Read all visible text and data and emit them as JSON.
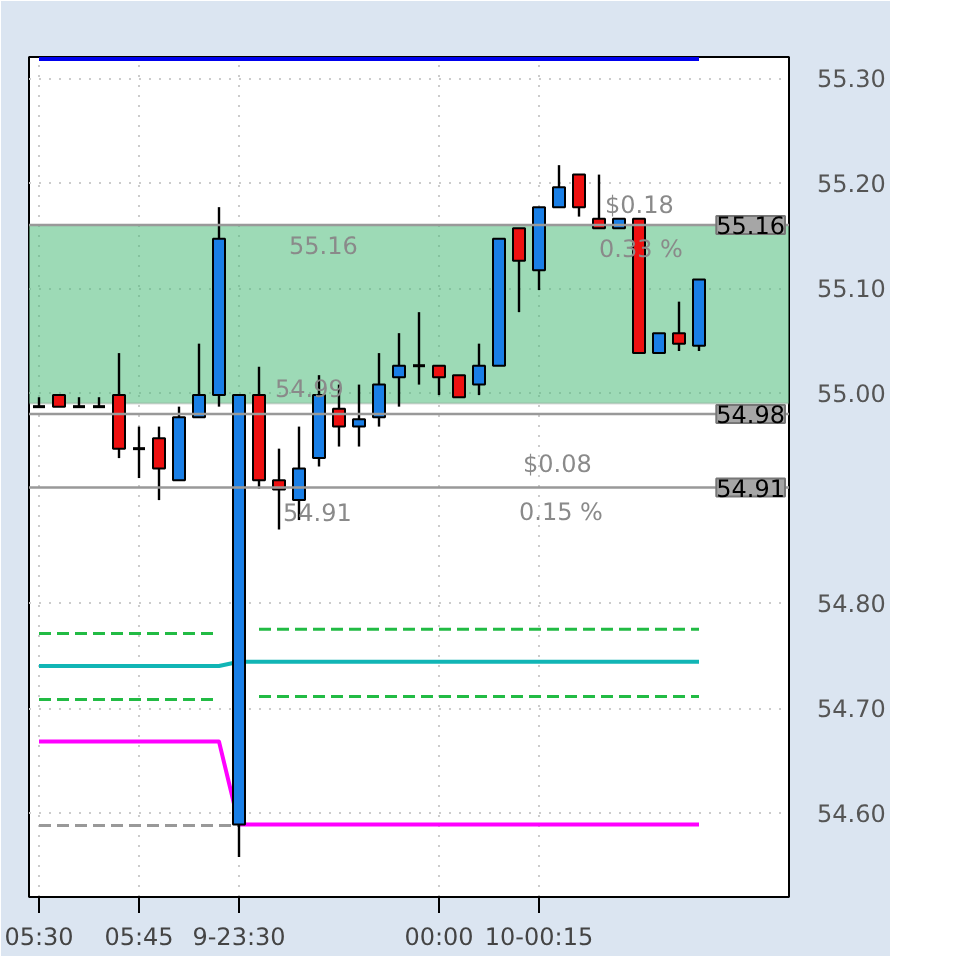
{
  "chart_data": {
    "type": "candlestick",
    "categories": [
      "05:30",
      null,
      null,
      null,
      null,
      "05:45",
      null,
      null,
      null,
      null,
      "9-23:30",
      null,
      null,
      null,
      null,
      null,
      null,
      null,
      null,
      null,
      "00:00",
      null,
      null,
      null,
      null,
      "10-00:15",
      null,
      null,
      null,
      null,
      null,
      null,
      null,
      null
    ],
    "ohlc": [
      [
        54.987,
        54.996,
        54.987,
        54.987
      ],
      [
        54.998,
        54.998,
        54.987,
        54.987
      ],
      [
        54.987,
        54.996,
        54.987,
        54.987
      ],
      [
        54.987,
        54.996,
        54.987,
        54.987
      ],
      [
        54.998,
        55.038,
        54.938,
        54.947
      ],
      [
        54.947,
        54.968,
        54.919,
        54.947
      ],
      [
        54.957,
        54.968,
        54.898,
        54.928
      ],
      [
        54.917,
        54.987,
        54.917,
        54.977
      ],
      [
        54.977,
        55.047,
        54.977,
        54.998
      ],
      [
        54.998,
        55.177,
        54.987,
        55.147
      ],
      [
        54.589,
        54.998,
        54.558,
        54.998
      ],
      [
        54.998,
        55.025,
        54.909,
        54.917
      ],
      [
        54.917,
        54.947,
        54.87,
        54.908
      ],
      [
        54.898,
        54.968,
        54.879,
        54.928
      ],
      [
        54.938,
        55.017,
        54.93,
        54.998
      ],
      [
        54.985,
        55.008,
        54.949,
        54.968
      ],
      [
        54.968,
        55.008,
        54.949,
        54.975
      ],
      [
        54.977,
        55.038,
        54.968,
        55.008
      ],
      [
        55.015,
        55.057,
        54.987,
        55.026
      ],
      [
        55.026,
        55.077,
        55.008,
        55.026
      ],
      [
        55.026,
        55.026,
        54.998,
        55.015
      ],
      [
        55.017,
        55.017,
        54.996,
        54.996
      ],
      [
        55.008,
        55.047,
        54.998,
        55.026
      ],
      [
        55.026,
        55.147,
        55.026,
        55.147
      ],
      [
        55.157,
        55.157,
        55.077,
        55.126
      ],
      [
        55.117,
        55.177,
        55.098,
        55.177
      ],
      [
        55.177,
        55.217,
        55.177,
        55.196
      ],
      [
        55.208,
        55.208,
        55.168,
        55.177
      ],
      [
        55.166,
        55.208,
        55.157,
        55.157
      ],
      [
        55.157,
        55.166,
        55.157,
        55.166
      ],
      [
        55.166,
        55.166,
        55.038,
        55.038
      ],
      [
        55.038,
        55.057,
        55.038,
        55.057
      ],
      [
        55.057,
        55.087,
        55.04,
        55.047
      ],
      [
        55.045,
        55.108,
        55.04,
        55.108
      ]
    ],
    "colors": [
      "#000000",
      "#ee1111",
      "#000000",
      "#000000",
      "#ee1111",
      "#000000",
      "#ee1111",
      "#1a7fe6",
      "#1a7fe6",
      "#1a7fe6",
      "#1a7fe6",
      "#ee1111",
      "#ee1111",
      "#1a7fe6",
      "#1a7fe6",
      "#ee1111",
      "#1a7fe6",
      "#1a7fe6",
      "#1a7fe6",
      "#000000",
      "#ee1111",
      "#ee1111",
      "#1a7fe6",
      "#1a7fe6",
      "#ee1111",
      "#1a7fe6",
      "#1a7fe6",
      "#ee1111",
      "#ee1111",
      "#1a7fe6",
      "#ee1111",
      "#1a7fe6",
      "#ee1111",
      "#1a7fe6"
    ],
    "series": [
      {
        "type": "line",
        "color": "#0000ee",
        "line_style": "solid",
        "values": [
          55.318,
          55.318,
          55.318,
          55.318,
          55.318,
          55.318,
          55.318,
          55.318,
          55.318,
          55.318,
          55.318,
          55.318,
          55.318,
          55.318,
          55.318,
          55.318,
          55.318,
          55.318,
          55.318,
          55.318,
          55.318,
          55.318,
          55.318,
          55.318,
          55.318,
          55.318,
          55.318,
          55.318,
          55.318,
          55.318,
          55.318,
          55.318,
          55.318,
          55.318
        ]
      },
      {
        "type": "line",
        "color": "#22bb44",
        "line_style": "dashed",
        "values": [
          54.771,
          54.771,
          54.771,
          54.771,
          54.771,
          54.771,
          54.771,
          54.771,
          54.771,
          54.771,
          null,
          54.775,
          54.775,
          54.775,
          54.775,
          54.775,
          54.775,
          54.775,
          54.775,
          54.775,
          54.775,
          54.775,
          54.775,
          54.775,
          54.775,
          54.775,
          54.775,
          54.775,
          54.775,
          54.775,
          54.775,
          54.775,
          54.775,
          54.775
        ]
      },
      {
        "type": "line",
        "color": "#11b5b5",
        "line_style": "solid",
        "values": [
          54.74,
          54.74,
          54.74,
          54.74,
          54.74,
          54.74,
          54.74,
          54.74,
          54.74,
          54.74,
          54.744,
          54.744,
          54.744,
          54.744,
          54.744,
          54.744,
          54.744,
          54.744,
          54.744,
          54.744,
          54.744,
          54.744,
          54.744,
          54.744,
          54.744,
          54.744,
          54.744,
          54.744,
          54.744,
          54.744,
          54.744,
          54.744,
          54.744,
          54.744
        ]
      },
      {
        "type": "line",
        "color": "#22bb44",
        "line_style": "dashed",
        "values": [
          54.708,
          54.708,
          54.708,
          54.708,
          54.708,
          54.708,
          54.708,
          54.708,
          54.708,
          54.708,
          null,
          54.711,
          54.711,
          54.711,
          54.711,
          54.711,
          54.711,
          54.711,
          54.711,
          54.711,
          54.711,
          54.711,
          54.711,
          54.711,
          54.711,
          54.711,
          54.711,
          54.711,
          54.711,
          54.711,
          54.711,
          54.711,
          54.711,
          54.711
        ]
      },
      {
        "type": "line",
        "color": "#ff00ff",
        "line_style": "solid",
        "values": [
          54.668,
          54.668,
          54.668,
          54.668,
          54.668,
          54.668,
          54.668,
          54.668,
          54.668,
          54.668,
          54.589,
          54.589,
          54.589,
          54.589,
          54.589,
          54.589,
          54.589,
          54.589,
          54.589,
          54.589,
          54.589,
          54.589,
          54.589,
          54.589,
          54.589,
          54.589,
          54.589,
          54.589,
          54.589,
          54.589,
          54.589,
          54.589,
          54.589,
          54.589
        ]
      },
      {
        "type": "line",
        "color": "#999999",
        "line_style": "dashed",
        "values": [
          54.588,
          54.588,
          54.588,
          54.588,
          54.588,
          54.588,
          54.588,
          54.588,
          54.588,
          54.588,
          54.588,
          null,
          null,
          null,
          null,
          null,
          null,
          null,
          null,
          null,
          null,
          null,
          null,
          null,
          null,
          null,
          null,
          null,
          null,
          null,
          null,
          null,
          null,
          null
        ]
      }
    ],
    "ylim": [
      54.52,
      55.32
    ],
    "yticks": [
      {
        "value": 54.6,
        "label": "54.60"
      },
      {
        "value": 54.7,
        "label": "54.70"
      },
      {
        "value": 54.8,
        "label": "54.80"
      },
      {
        "value": 55.0,
        "label": "55.00"
      },
      {
        "value": 55.1,
        "label": "55.10"
      },
      {
        "value": 55.2,
        "label": "55.20"
      },
      {
        "value": 55.3,
        "label": "55.30"
      }
    ],
    "ref_lines": [
      {
        "axis": "y",
        "value": 55.16,
        "label": "55.16",
        "color": "#999999"
      },
      {
        "axis": "y",
        "value": 54.98,
        "label": "54.98",
        "color": "#999999"
      },
      {
        "axis": "y",
        "value": 54.91,
        "label": "54.91",
        "color": "#999999"
      }
    ],
    "bands": [
      {
        "axis": "y",
        "from": 54.99,
        "to": 55.16,
        "color": "#4dbb7a"
      }
    ],
    "annotations": [
      {
        "text": "55.16",
        "y": 55.16
      },
      {
        "text": "54.99",
        "y": 54.99
      },
      {
        "text": "54.91",
        "y": 54.91
      },
      {
        "text": "$0.18",
        "y": 55.16
      },
      {
        "text": "0.33 %",
        "y": 55.16
      },
      {
        "text": "$0.08",
        "y": 54.91
      },
      {
        "text": "0.15 %",
        "y": 54.91
      }
    ],
    "grid": true
  }
}
